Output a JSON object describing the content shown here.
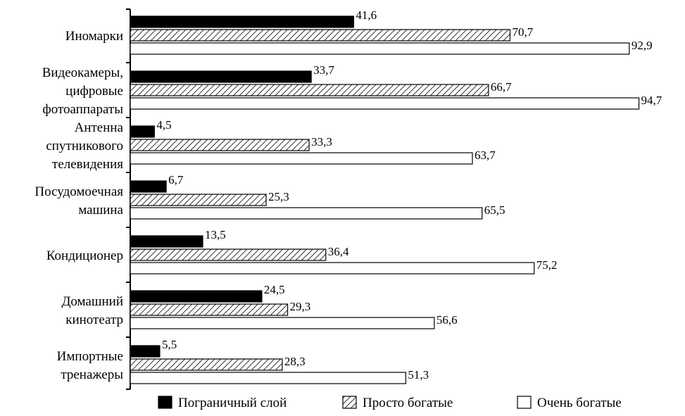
{
  "chart_data": {
    "type": "bar",
    "orientation": "horizontal",
    "categories": [
      [
        "Иномарки"
      ],
      [
        "Видеокамеры,",
        "цифровые",
        "фотоаппараты"
      ],
      [
        "Антенна",
        "спутникового",
        "телевидения"
      ],
      [
        "Посудомоечная",
        "машина"
      ],
      [
        "Кондиционер"
      ],
      [
        "Домашний",
        "кинотеатр"
      ],
      [
        "Импортные",
        "тренажеры"
      ]
    ],
    "series": [
      {
        "name": "Пограничный слой",
        "fill": "solid",
        "values": [
          41.6,
          33.7,
          4.5,
          6.7,
          13.5,
          24.5,
          5.5
        ],
        "labels": [
          "41,6",
          "33,7",
          "4,5",
          "6,7",
          "13,5",
          "24,5",
          "5,5"
        ]
      },
      {
        "name": "Просто богатые",
        "fill": "hatched",
        "values": [
          70.7,
          66.7,
          33.3,
          25.3,
          36.4,
          29.3,
          28.3
        ],
        "labels": [
          "70,7",
          "66,7",
          "33,3",
          "25,3",
          "36,4",
          "29,3",
          "28,3"
        ]
      },
      {
        "name": "Очень богатые",
        "fill": "white",
        "values": [
          92.9,
          94.7,
          63.7,
          65.5,
          75.2,
          56.6,
          51.3
        ],
        "labels": [
          "92,9",
          "94,7",
          "63,7",
          "65,5",
          "75,2",
          "56,6",
          "51,3"
        ]
      }
    ],
    "xlim": [
      0,
      100
    ],
    "grid": false,
    "legend_position": "bottom",
    "colors": {
      "ink": "#000000",
      "paper": "#ffffff"
    }
  }
}
